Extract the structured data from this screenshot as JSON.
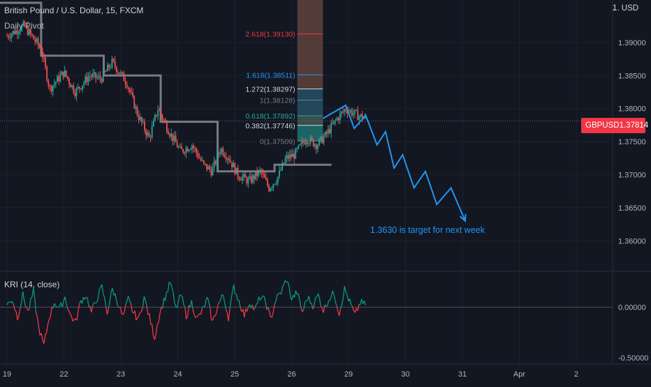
{
  "header": {
    "symbol_line": "British Pound / U.S. Dollar, 15, FXCM",
    "indicator_label": "Daily Pivot",
    "currency_label": "1. USD"
  },
  "price_tag": {
    "symbol": "GBPUSD",
    "value": "1.37814"
  },
  "annotation": "1.3630 is target for next week",
  "colors": {
    "background": "#131722",
    "bull": "#26a69a",
    "bear": "#ef5350",
    "pivot": "#787b86",
    "projection": "#2196f3",
    "price_tag": "#f23645",
    "kri_up": "#089981",
    "kri_down": "#f23645"
  },
  "chart_data": [
    {
      "type": "candlestick",
      "title": "British Pound / U.S. Dollar, 15, FXCM",
      "ylim": [
        1.3555,
        1.396
      ],
      "y_ticks": [
        "1.36000",
        "1.36500",
        "1.37000",
        "1.37500",
        "1.38000",
        "1.38500",
        "1.39000"
      ],
      "x_ticks": [
        "19",
        "22",
        "23",
        "24",
        "25",
        "26",
        "29",
        "30",
        "31",
        "Apr",
        "2"
      ],
      "last_price": 1.37814,
      "price_path": [
        [
          0,
          1.391
        ],
        [
          0.3,
          1.3925
        ],
        [
          0.6,
          1.389
        ],
        [
          0.75,
          1.383
        ],
        [
          1.0,
          1.3855
        ],
        [
          1.2,
          1.3825
        ],
        [
          1.45,
          1.385
        ],
        [
          1.65,
          1.3845
        ],
        [
          1.85,
          1.387
        ],
        [
          2.1,
          1.384
        ],
        [
          2.3,
          1.379
        ],
        [
          2.5,
          1.3755
        ],
        [
          2.65,
          1.38
        ],
        [
          2.85,
          1.3765
        ],
        [
          3.05,
          1.3735
        ],
        [
          3.25,
          1.3745
        ],
        [
          3.45,
          1.3715
        ],
        [
          3.6,
          1.3705
        ],
        [
          3.75,
          1.374
        ],
        [
          3.9,
          1.3725
        ],
        [
          4.05,
          1.37
        ],
        [
          4.25,
          1.369
        ],
        [
          4.45,
          1.3705
        ],
        [
          4.6,
          1.368
        ],
        [
          4.75,
          1.3695
        ],
        [
          4.9,
          1.3725
        ],
        [
          5.05,
          1.373
        ],
        [
          5.25,
          1.3755
        ],
        [
          5.45,
          1.3745
        ],
        [
          5.6,
          1.376
        ],
        [
          5.8,
          1.3785
        ],
        [
          5.95,
          1.38
        ],
        [
          6.15,
          1.379
        ],
        [
          6.3,
          1.3785
        ]
      ],
      "daily_pivot": [
        [
          -0.2,
          1.396
        ],
        [
          0.6,
          1.396
        ],
        [
          0.6,
          1.388
        ],
        [
          1.7,
          1.388
        ],
        [
          1.7,
          1.385
        ],
        [
          2.7,
          1.385
        ],
        [
          2.7,
          1.378
        ],
        [
          3.7,
          1.378
        ],
        [
          3.7,
          1.3705
        ],
        [
          4.7,
          1.3705
        ],
        [
          4.7,
          1.3715
        ],
        [
          5.7,
          1.3715
        ]
      ],
      "fibonacci": {
        "x_range": [
          5.1,
          5.55
        ],
        "levels": [
          {
            "ratio": "0",
            "label": "0(1.37509)",
            "value": 1.37509,
            "color": "#787b86",
            "fill": "#26a69a"
          },
          {
            "ratio": "0.382",
            "label": "0.382(1.37746)",
            "value": 1.37746,
            "color": "#d1d4dc",
            "fill": "#26a69a"
          },
          {
            "ratio": "0.618",
            "label": "0.618(1.37892)",
            "value": 1.37892,
            "color": "#26a69a",
            "fill": "#5d7a6e"
          },
          {
            "ratio": "1",
            "label": "1(1.38128)",
            "value": 1.38128,
            "color": "#787b86",
            "fill": "#2f6f8a"
          },
          {
            "ratio": "1.272",
            "label": "1.272(1.38297)",
            "value": 1.38297,
            "color": "#d1d4dc",
            "fill": "#2f6f8a"
          },
          {
            "ratio": "1.618",
            "label": "1.618(1.38511)",
            "value": 1.38511,
            "color": "#2196f3",
            "fill": "#8b5a4a"
          },
          {
            "ratio": "2.618",
            "label": "2.618(1.39130)",
            "value": 1.3913,
            "color": "#f23645",
            "fill": "#8b5a4a"
          }
        ]
      },
      "projection": [
        [
          5.55,
          1.3785
        ],
        [
          5.95,
          1.3805
        ],
        [
          6.1,
          1.377
        ],
        [
          6.3,
          1.379
        ],
        [
          6.5,
          1.3745
        ],
        [
          6.65,
          1.3765
        ],
        [
          6.8,
          1.371
        ],
        [
          6.95,
          1.373
        ],
        [
          7.15,
          1.368
        ],
        [
          7.35,
          1.3705
        ],
        [
          7.55,
          1.3655
        ],
        [
          7.8,
          1.368
        ],
        [
          8.05,
          1.363
        ]
      ]
    },
    {
      "type": "line",
      "title": "KRI (14, close)",
      "ylim": [
        -0.55,
        0.35
      ],
      "y_ticks": [
        "0.00000",
        "-0.50000"
      ],
      "series": [
        {
          "values": [
            0.02,
            0.08,
            -0.1,
            0.12,
            -0.05,
            0.15,
            -0.2,
            -0.38,
            -0.1,
            0.05,
            -0.02,
            0.1,
            -0.08,
            -0.15,
            0.06,
            0.12,
            -0.05,
            0.08,
            0.2,
            -0.05,
            0.18,
            0.05,
            -0.1,
            0.08,
            -0.06,
            -0.12,
            0.1,
            -0.1,
            -0.3,
            -0.05,
            0.1,
            0.25,
            -0.02,
            0.12,
            -0.08,
            0.05,
            -0.12,
            -0.04,
            0.08,
            -0.15,
            0.02,
            0.12,
            -0.1,
            0.2,
            0.06,
            -0.08,
            0.05,
            -0.03,
            0.1,
            0.06,
            -0.12,
            0.08,
            0.15,
            0.28,
            0.08,
            0.15,
            -0.05,
            0.1,
            0.02,
            0.12,
            -0.03,
            0.08,
            0.14,
            -0.06,
            0.18,
            0.05,
            -0.08,
            0.05,
            0.02
          ]
        }
      ]
    }
  ]
}
